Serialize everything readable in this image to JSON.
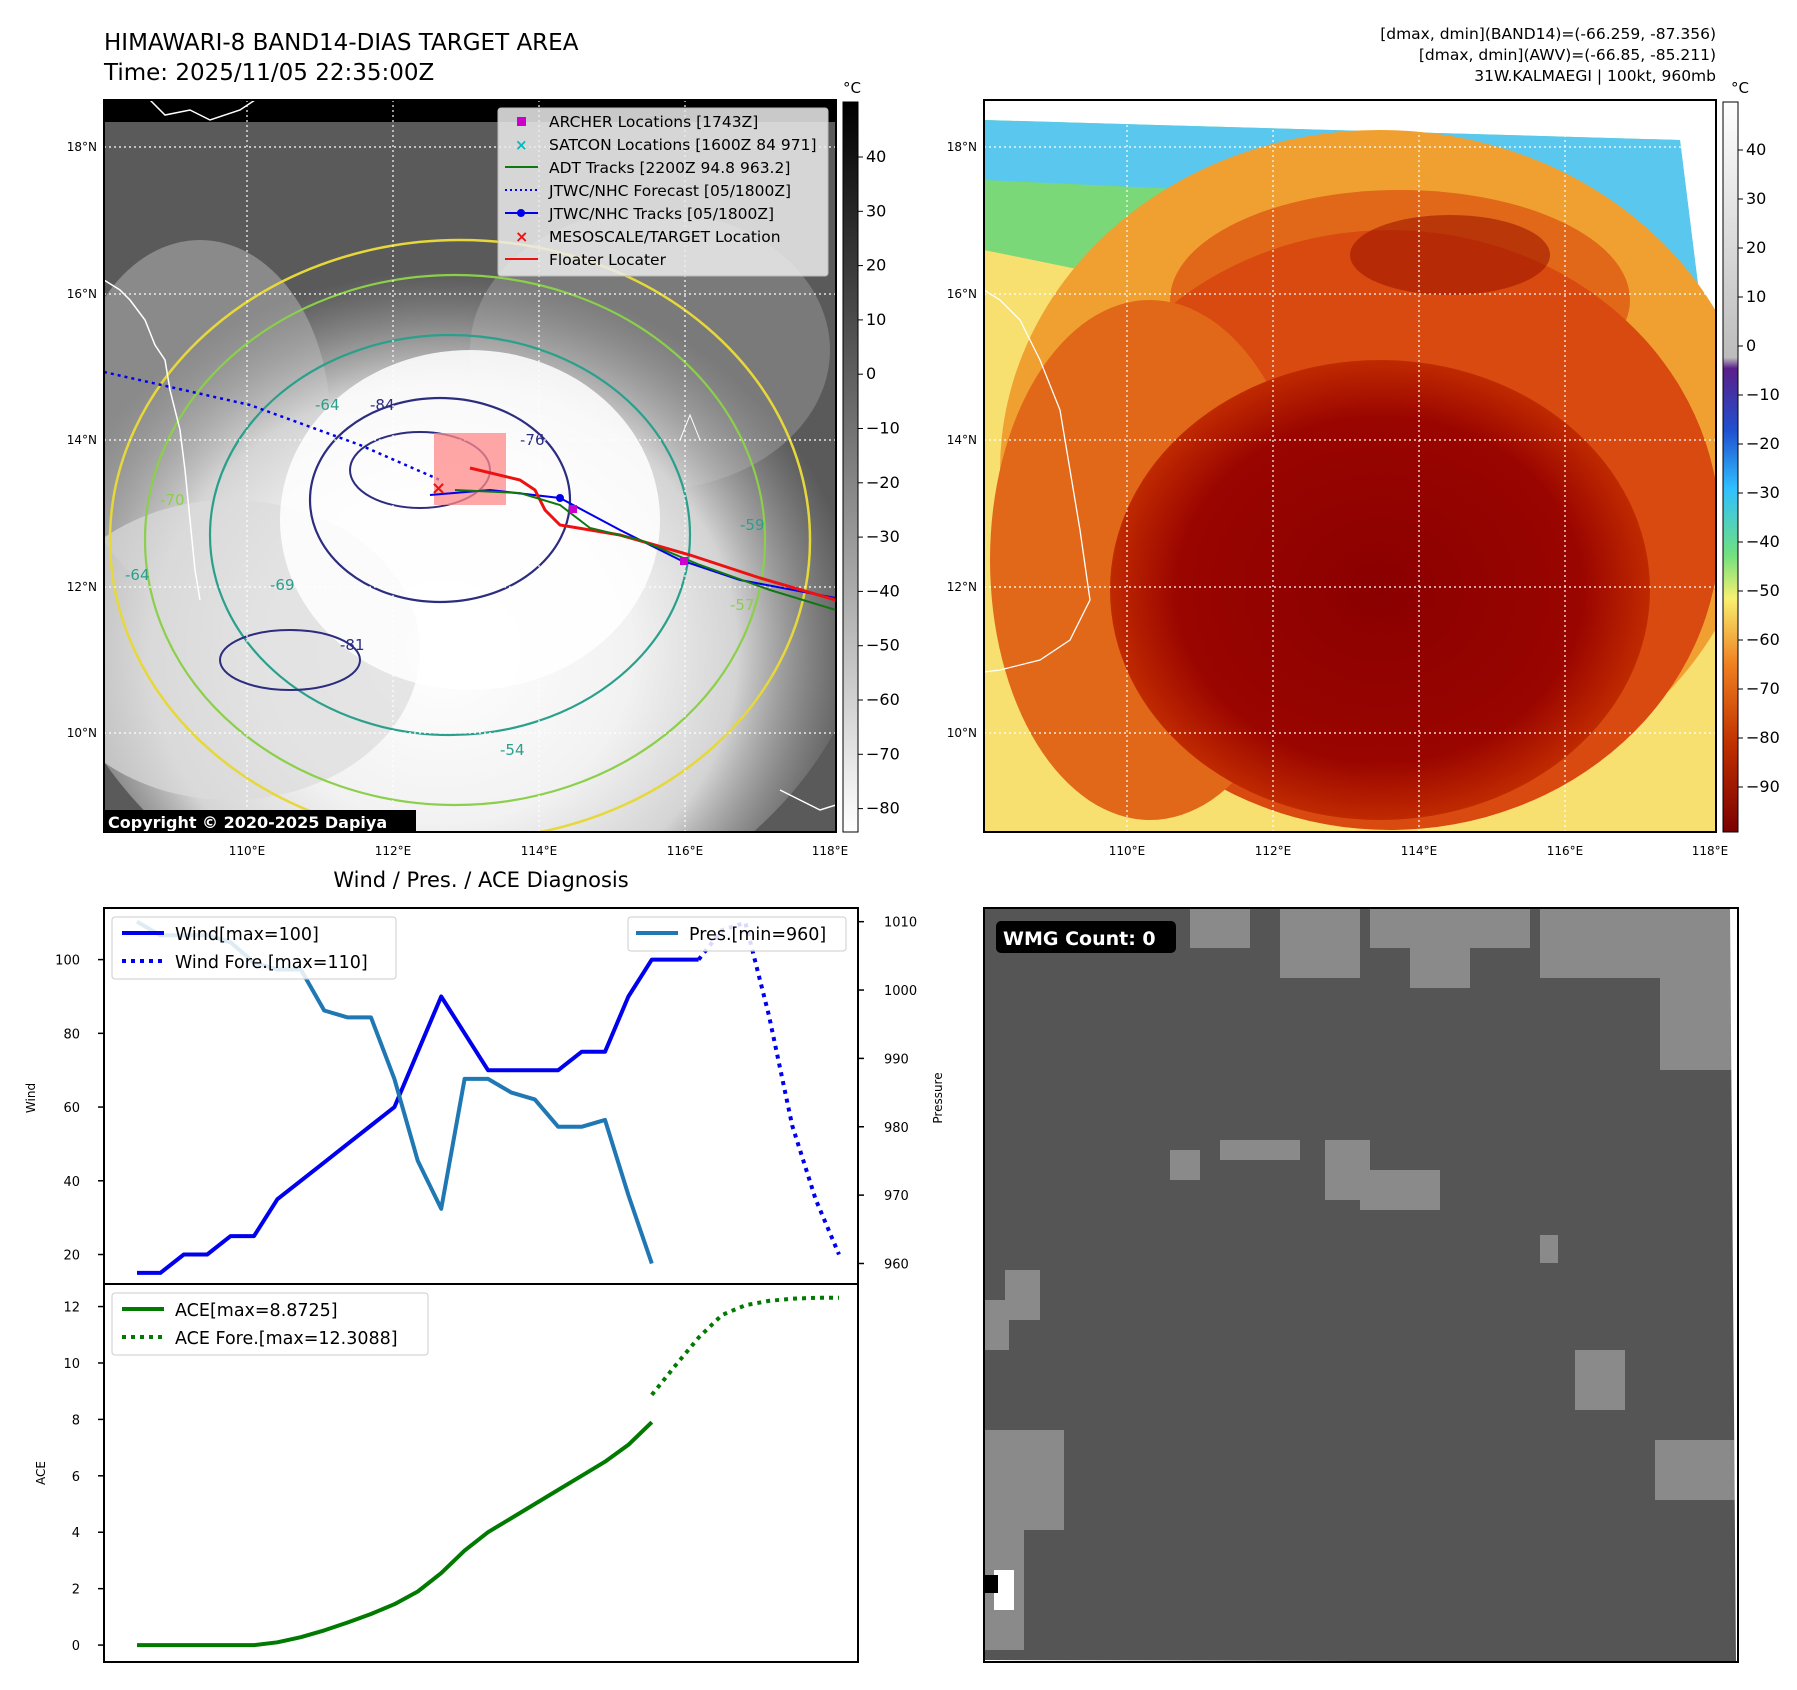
{
  "header": {
    "title_line1": "HIMAWARI-8 BAND14-DIAS TARGET AREA",
    "title_line2": "Time: 2025/11/05 22:35:00Z",
    "info_line1": "[dmax, dmin](BAND14)=(-66.259, -87.356)",
    "info_line2": "[dmax, dmin](AWV)=(-66.85, -85.211)",
    "info_line3": "31W.KALMAEGI | 100kt, 960mb"
  },
  "colors": {
    "wind": "#0000ee",
    "pressure": "#1f77b4",
    "ace": "#007a00",
    "track_red": "#ee1111",
    "adt_green": "#117711",
    "archer": "#cc00cc",
    "satcon": "#00bbbb",
    "target_box": "#ff8888"
  },
  "map_axes": {
    "lon_ticks": [
      "110°E",
      "112°E",
      "114°E",
      "116°E",
      "118°E"
    ],
    "lat_ticks": [
      "18°N",
      "16°N",
      "14°N",
      "12°N",
      "10°N"
    ],
    "unit": "°C"
  },
  "ir_panel": {
    "colorbar_ticks": [
      "40",
      "30",
      "20",
      "10",
      "0",
      "−10",
      "−20",
      "−30",
      "−40",
      "−50",
      "−60",
      "−70",
      "−80"
    ],
    "contour_labels": [
      "-84",
      "-76",
      "-64",
      "-54",
      "-81",
      "-69",
      "-59",
      "-70",
      "-64",
      "-57"
    ],
    "copyright": "Copyright © 2020-2025 Dapiya",
    "legend": [
      {
        "label": "ARCHER Locations [1743Z]",
        "icon": "square-marker-icon"
      },
      {
        "label": "SATCON Locations [1600Z 84 971]",
        "icon": "x-marker-icon"
      },
      {
        "label": "ADT Tracks [2200Z 94.8 963.2]",
        "icon": "line-icon"
      },
      {
        "label": "JTWC/NHC Forecast [05/1800Z]",
        "icon": "dotted-line-icon"
      },
      {
        "label": "JTWC/NHC Tracks [05/1800Z]",
        "icon": "line-dot-icon"
      },
      {
        "label": "MESOSCALE/TARGET Location",
        "icon": "x-marker-icon"
      },
      {
        "label": "Floater Locater",
        "icon": "line-icon"
      }
    ]
  },
  "awv_panel": {
    "colorbar_ticks": [
      "40",
      "30",
      "20",
      "10",
      "0",
      "−10",
      "−20",
      "−30",
      "−40",
      "−50",
      "−60",
      "−70",
      "−80",
      "−90"
    ]
  },
  "wmg_panel": {
    "label": "WMG Count: 0"
  },
  "chart_data": [
    {
      "type": "line",
      "title": "Wind / Pres. / ACE Diagnosis",
      "xlabel": "",
      "ylabel": "Wind",
      "ylabel_right": "Pressure",
      "ylim": [
        12,
        114
      ],
      "ylim_right": [
        957,
        1012
      ],
      "yticks": [
        20,
        40,
        60,
        80,
        100
      ],
      "yticks_right": [
        960,
        970,
        980,
        990,
        1000,
        1010
      ],
      "series": [
        {
          "name": "Wind[max=100]",
          "axis": "left",
          "style": "solid",
          "x": [
            0,
            1,
            2,
            3,
            4,
            5,
            6,
            7,
            8,
            9,
            10,
            11,
            12,
            13,
            14,
            15,
            16,
            17,
            18,
            19,
            20,
            21,
            22,
            23,
            24
          ],
          "values": [
            15,
            15,
            20,
            20,
            25,
            25,
            35,
            40,
            45,
            50,
            55,
            60,
            75,
            90,
            80,
            70,
            70,
            70,
            70,
            75,
            75,
            90,
            100,
            100,
            100
          ]
        },
        {
          "name": "Wind Fore.[max=110]",
          "axis": "left",
          "style": "dotted",
          "x": [
            24,
            25,
            26,
            27,
            28,
            29,
            30
          ],
          "values": [
            100,
            108,
            110,
            85,
            55,
            35,
            20
          ]
        },
        {
          "name": "Pres.[min=960]",
          "axis": "right",
          "style": "solid",
          "x": [
            0,
            1,
            2,
            3,
            4,
            5,
            6,
            7,
            8,
            9,
            10,
            11,
            12,
            13,
            14,
            15,
            16,
            17,
            18,
            19,
            20,
            21,
            22
          ],
          "values": [
            1010,
            1008,
            1008,
            1008,
            1007,
            1004,
            1003,
            1003,
            997,
            996,
            996,
            987,
            975,
            968,
            987,
            987,
            985,
            984,
            980,
            980,
            981,
            970,
            960
          ]
        }
      ]
    },
    {
      "type": "line",
      "title": "",
      "xlabel": "",
      "ylabel": "ACE",
      "ylim": [
        -0.6,
        12.8
      ],
      "yticks": [
        0,
        2,
        4,
        6,
        8,
        10,
        12
      ],
      "series": [
        {
          "name": "ACE[max=8.8725]",
          "style": "solid",
          "x": [
            0,
            1,
            2,
            3,
            4,
            5,
            6,
            7,
            8,
            9,
            10,
            11,
            12,
            13,
            14,
            15,
            16,
            17,
            18,
            19,
            20,
            21,
            22
          ],
          "values": [
            0,
            0,
            0,
            0,
            0,
            0,
            0.1,
            0.28,
            0.52,
            0.8,
            1.1,
            1.45,
            1.9,
            2.55,
            3.35,
            4.0,
            4.5,
            5.0,
            5.5,
            6.0,
            6.5,
            7.1,
            7.9
          ]
        },
        {
          "name": "ACE Fore.[max=12.3088]",
          "style": "dotted",
          "x": [
            22,
            23,
            24,
            25,
            26,
            27,
            28,
            29,
            30
          ],
          "values": [
            8.87,
            9.9,
            10.9,
            11.7,
            12.05,
            12.2,
            12.28,
            12.31,
            12.31
          ]
        }
      ]
    }
  ]
}
